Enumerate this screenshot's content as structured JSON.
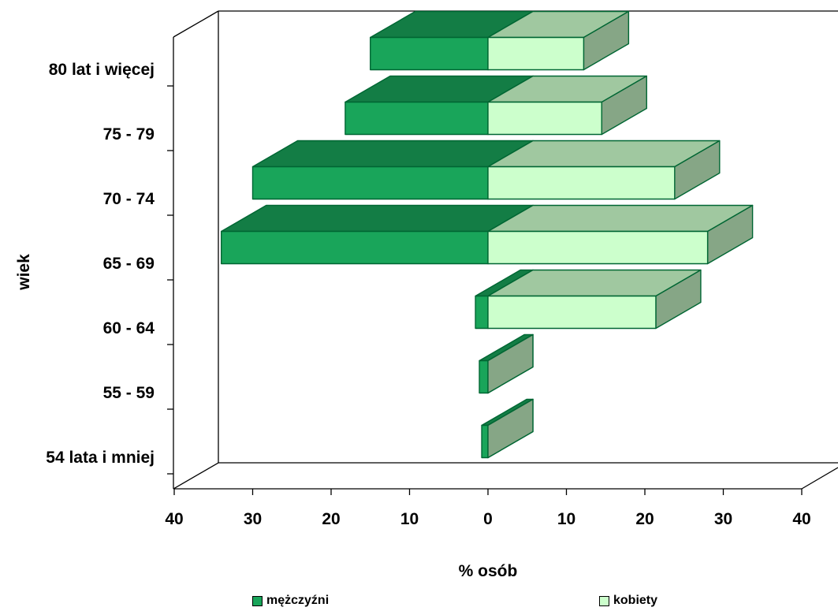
{
  "chart_data": {
    "type": "bar",
    "orientation": "horizontal",
    "style": "3d population pyramid",
    "categories": [
      "54 lata i mniej",
      "55 - 59",
      "60 - 64",
      "65 - 69",
      "70 - 74",
      "75 - 79",
      "80 lat i więcej"
    ],
    "series": [
      {
        "name": "mężczyźni",
        "values": [
          0.8,
          1.1,
          1.6,
          34,
          30,
          18.2,
          15
        ],
        "color": "#19a55a"
      },
      {
        "name": "kobiety",
        "values": [
          0,
          0,
          21.4,
          28,
          23.8,
          14.5,
          12.2
        ],
        "color": "#ccffcc"
      }
    ],
    "xlabel": "% osób",
    "ylabel": "wiek",
    "xlim": [
      -40,
      40
    ],
    "xticks": [
      -40,
      -30,
      -20,
      -10,
      0,
      10,
      20,
      30,
      40
    ],
    "xtick_labels": [
      "40",
      "30",
      "20",
      "10",
      "0",
      "10",
      "20",
      "30",
      "40"
    ],
    "legend_position": "bottom",
    "grid": false
  }
}
